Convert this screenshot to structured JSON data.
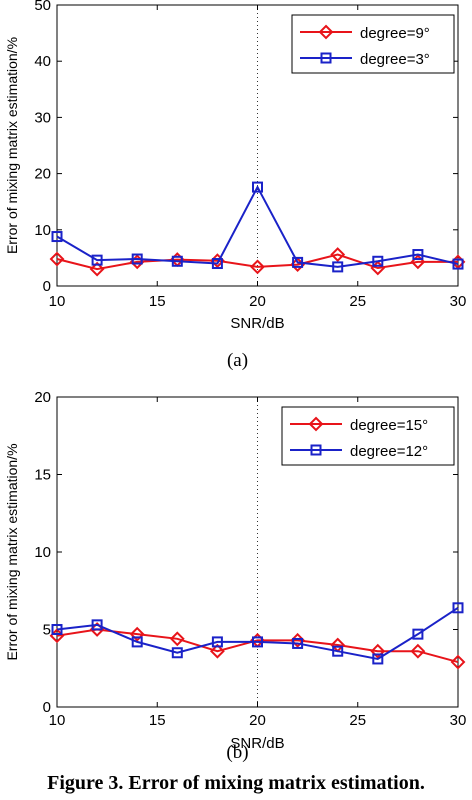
{
  "figure_caption": "Figure 3. Error of mixing matrix estimation.",
  "chart_data": [
    {
      "type": "line",
      "panel_label": "(a)",
      "xlabel": "SNR/dB",
      "ylabel": "Error of mixing matrix estimation/%",
      "xlim": [
        10,
        30
      ],
      "ylim": [
        0,
        50
      ],
      "xticks": [
        10,
        15,
        20,
        25,
        30
      ],
      "yticks": [
        0,
        10,
        20,
        30,
        40,
        50
      ],
      "grid": "vertical dotted line at x=20",
      "legend_position": "top-right",
      "x": [
        10,
        12,
        14,
        16,
        18,
        20,
        22,
        24,
        26,
        28,
        30
      ],
      "series": [
        {
          "name": "degree=9°",
          "marker": "diamond",
          "color": "#e8141a",
          "values": [
            4.8,
            3.0,
            4.3,
            4.7,
            4.5,
            3.4,
            3.8,
            5.6,
            3.2,
            4.3,
            4.3
          ]
        },
        {
          "name": "degree=3°",
          "marker": "square",
          "color": "#1a22c8",
          "values": [
            8.8,
            4.6,
            4.8,
            4.4,
            4.0,
            17.6,
            4.2,
            3.4,
            4.4,
            5.6,
            3.9
          ]
        }
      ]
    },
    {
      "type": "line",
      "panel_label": "(b)",
      "xlabel": "SNR/dB",
      "ylabel": "Error of mixing matrix estimation/%",
      "xlim": [
        10,
        30
      ],
      "ylim": [
        0,
        20
      ],
      "xticks": [
        10,
        15,
        20,
        25,
        30
      ],
      "yticks": [
        0,
        5,
        10,
        15,
        20
      ],
      "grid": "vertical dotted line at x=20",
      "legend_position": "top-right",
      "x": [
        10,
        12,
        14,
        16,
        18,
        20,
        22,
        24,
        26,
        28,
        30
      ],
      "series": [
        {
          "name": "degree=15°",
          "marker": "diamond",
          "color": "#e8141a",
          "values": [
            4.6,
            5.0,
            4.7,
            4.4,
            3.6,
            4.3,
            4.3,
            4.0,
            3.6,
            3.6,
            2.9
          ]
        },
        {
          "name": "degree=12°",
          "marker": "square",
          "color": "#1a22c8",
          "values": [
            5.0,
            5.3,
            4.2,
            3.5,
            4.2,
            4.2,
            4.1,
            3.6,
            3.1,
            4.7,
            6.4
          ]
        }
      ]
    }
  ]
}
